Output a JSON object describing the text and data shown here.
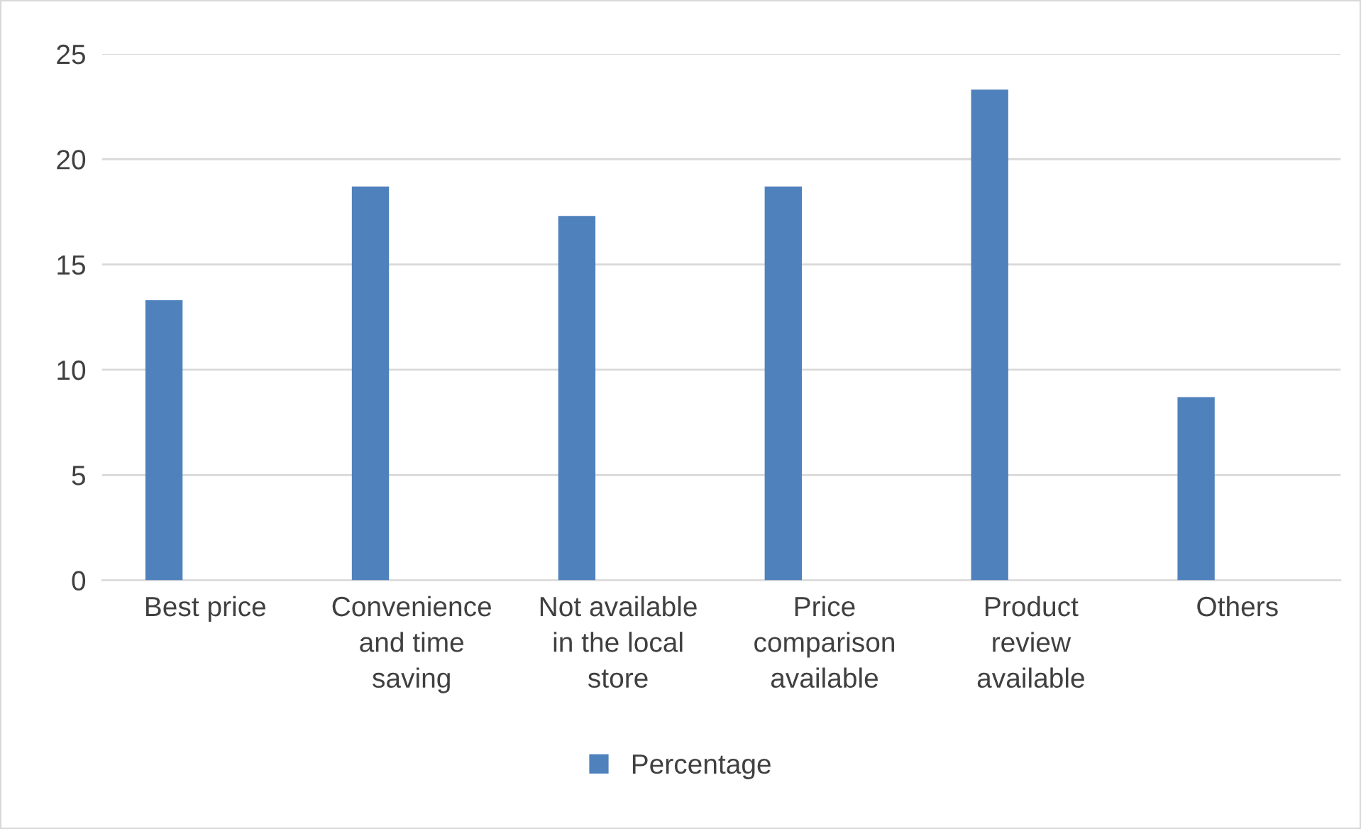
{
  "chart_data": {
    "type": "bar",
    "categories": [
      "Best price",
      "Convenience\nand time\nsaving",
      "Not available\nin the local\nstore",
      "Price\ncomparison\navailable",
      "Product\nreview\navailable",
      "Others"
    ],
    "series": [
      {
        "name": "Percentage",
        "color": "#4f81bd",
        "values": [
          13.3,
          18.7,
          17.3,
          18.7,
          23.3,
          8.7
        ]
      }
    ],
    "ylim": [
      0,
      25
    ],
    "yticks": [
      0,
      5,
      10,
      15,
      20,
      25
    ],
    "grid": "y",
    "legend": "bottom"
  }
}
